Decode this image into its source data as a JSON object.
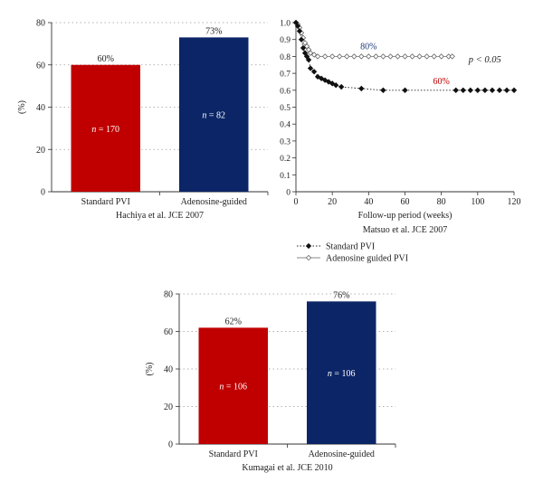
{
  "chart_data": [
    {
      "type": "bar",
      "caption": "Hachiya et al. JCE 2007",
      "ylabel": "(%)",
      "ylim": [
        0,
        80
      ],
      "yticks": [
        0,
        20,
        40,
        60,
        80
      ],
      "grid": true,
      "categories": [
        "Standard PVI",
        "Adenosine-guided"
      ],
      "values": [
        60,
        73
      ],
      "value_labels": [
        "60%",
        "73%"
      ],
      "n_labels": [
        "170",
        "82"
      ],
      "colors": [
        "#c00000",
        "#0b2566"
      ]
    },
    {
      "type": "line",
      "caption": "Matsuo et al. JCE 2007",
      "xlabel": "Follow-up period (weeks)",
      "xlim": [
        0,
        120
      ],
      "ylim": [
        0,
        1.0
      ],
      "xticks": [
        0,
        20,
        40,
        60,
        80,
        100,
        120
      ],
      "yticks": [
        "0",
        "0.1",
        "0.2",
        "0.3",
        "0.4",
        "0.5",
        "0.6",
        "0.7",
        "0.8",
        "0.9",
        "1.0"
      ],
      "ytick_values": [
        0,
        0.1,
        0.2,
        0.3,
        0.4,
        0.5,
        0.6,
        0.7,
        0.8,
        0.9,
        1.0
      ],
      "legend_position": "bottom",
      "annotation": "p < 0.05",
      "series": [
        {
          "name": "Standard PVI",
          "end_label": "60%",
          "color": "#222222",
          "label_color": "#c00000",
          "marker": "filled-diamond",
          "x": [
            0,
            1,
            2,
            3,
            4,
            5,
            6,
            7,
            8,
            10,
            12,
            14,
            16,
            18,
            20,
            22,
            25,
            36,
            48,
            60,
            88,
            92,
            96,
            100,
            104,
            108,
            112,
            116,
            120
          ],
          "y": [
            1.0,
            0.98,
            0.95,
            0.9,
            0.85,
            0.82,
            0.8,
            0.78,
            0.73,
            0.71,
            0.68,
            0.67,
            0.66,
            0.65,
            0.64,
            0.63,
            0.62,
            0.61,
            0.6,
            0.6,
            0.6,
            0.6,
            0.6,
            0.6,
            0.6,
            0.6,
            0.6,
            0.6,
            0.6
          ]
        },
        {
          "name": "Adenosine guided PVI",
          "end_label": "80%",
          "color": "#888888",
          "label_color": "#1f3a7a",
          "marker": "open-diamond",
          "x": [
            0,
            1,
            2,
            3,
            4,
            5,
            6,
            7,
            8,
            10,
            12,
            16,
            20,
            24,
            28,
            32,
            36,
            40,
            44,
            48,
            52,
            56,
            60,
            64,
            68,
            72,
            76,
            80,
            84,
            86
          ],
          "y": [
            1.0,
            0.99,
            0.97,
            0.94,
            0.91,
            0.88,
            0.86,
            0.84,
            0.82,
            0.81,
            0.8,
            0.8,
            0.8,
            0.8,
            0.8,
            0.8,
            0.8,
            0.8,
            0.8,
            0.8,
            0.8,
            0.8,
            0.8,
            0.8,
            0.8,
            0.8,
            0.8,
            0.8,
            0.8,
            0.8
          ]
        }
      ]
    },
    {
      "type": "bar",
      "caption": "Kumagai et al. JCE 2010",
      "ylabel": "(%)",
      "ylim": [
        0,
        80
      ],
      "yticks": [
        0,
        20,
        40,
        60,
        80
      ],
      "grid": true,
      "categories": [
        "Standard PVI",
        "Adenosine-guided"
      ],
      "values": [
        62,
        76
      ],
      "value_labels": [
        "62%",
        "76%"
      ],
      "n_labels": [
        "106",
        "106"
      ],
      "colors": [
        "#c00000",
        "#0b2566"
      ]
    }
  ]
}
